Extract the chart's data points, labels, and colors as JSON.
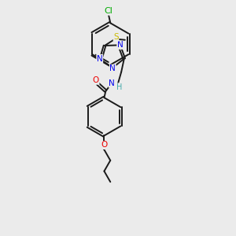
{
  "bg_color": "#ebebeb",
  "bond_color": "#1a1a1a",
  "bond_width": 1.4,
  "atom_colors": {
    "C": "#1a1a1a",
    "N": "#0000ee",
    "O": "#ee0000",
    "S": "#ccbb00",
    "Cl": "#00aa00",
    "H": "#44aaaa"
  },
  "font_size": 7.5
}
